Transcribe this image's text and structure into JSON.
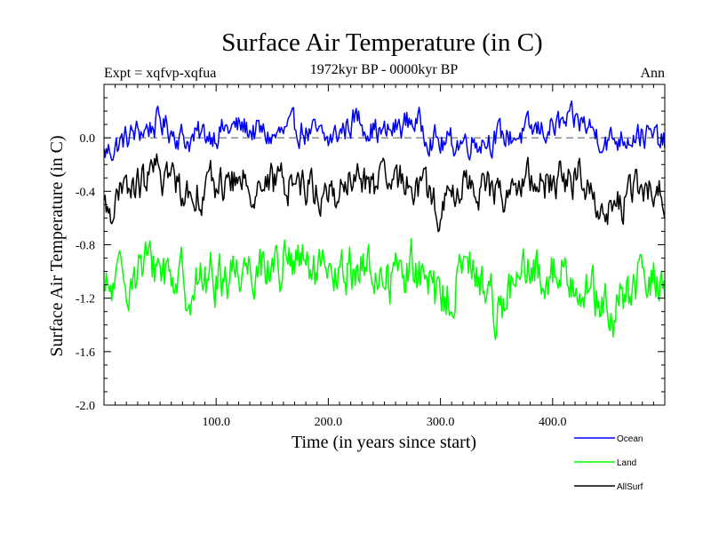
{
  "chart_data": {
    "type": "line",
    "title": "Surface Air Temperature (in C)",
    "left_annotation": "Expt = xqfvp-xqfua",
    "center_annotation": "1972kyr BP - 0000kyr BP",
    "right_annotation": "Ann",
    "xlabel": "Time (in years since start)",
    "ylabel": "Surface Air Temperature (in C)",
    "xlim": [
      0,
      500
    ],
    "ylim": [
      -2.0,
      0.4
    ],
    "x_ticks": [
      {
        "value": 100,
        "label": "100.0"
      },
      {
        "value": 200,
        "label": "200.0"
      },
      {
        "value": 300,
        "label": "300.0"
      },
      {
        "value": 400,
        "label": "400.0"
      }
    ],
    "y_ticks": [
      {
        "value": 0.0,
        "label": "0.0"
      },
      {
        "value": -0.4,
        "label": "-0.4"
      },
      {
        "value": -0.8,
        "label": "-0.8"
      },
      {
        "value": -1.2,
        "label": "-1.2"
      },
      {
        "value": -1.6,
        "label": "-1.6"
      },
      {
        "value": -2.0,
        "label": "-2.0"
      }
    ],
    "reference_line": {
      "value": 0.0,
      "style": "dashed"
    },
    "x": [
      0,
      25,
      50,
      75,
      100,
      125,
      150,
      175,
      200,
      225,
      250,
      275,
      300,
      325,
      350,
      375,
      400,
      425,
      450,
      475,
      500
    ],
    "series": [
      {
        "name": "Ocean",
        "color": "#0000ff",
        "values": [
          -0.12,
          0.02,
          0.12,
          -0.02,
          0.05,
          0.08,
          0.0,
          0.07,
          -0.03,
          0.15,
          0.02,
          0.14,
          -0.05,
          -0.02,
          0.0,
          0.03,
          0.08,
          0.12,
          -0.03,
          0.05,
          -0.05
        ]
      },
      {
        "name": "Land",
        "color": "#00ff00",
        "values": [
          -1.2,
          -1.0,
          -0.95,
          -1.1,
          -1.05,
          -0.95,
          -0.95,
          -0.95,
          -1.1,
          -0.95,
          -1.05,
          -0.95,
          -1.25,
          -0.95,
          -1.25,
          -1.05,
          -1.0,
          -1.05,
          -1.35,
          -1.1,
          -1.05
        ]
      },
      {
        "name": "AllSurf",
        "color": "#000000",
        "values": [
          -0.55,
          -0.38,
          -0.25,
          -0.4,
          -0.35,
          -0.33,
          -0.35,
          -0.32,
          -0.45,
          -0.3,
          -0.38,
          -0.3,
          -0.55,
          -0.32,
          -0.42,
          -0.35,
          -0.32,
          -0.3,
          -0.55,
          -0.4,
          -0.4
        ]
      }
    ],
    "legend_position": "bottom-right"
  }
}
